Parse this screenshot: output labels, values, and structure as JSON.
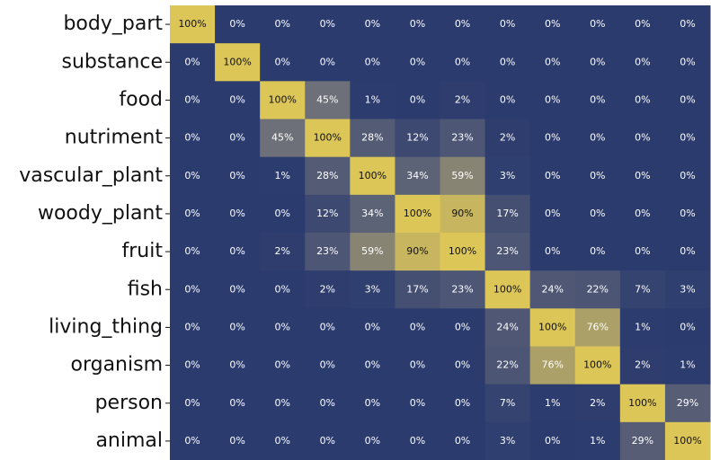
{
  "chart_data": {
    "type": "heatmap",
    "categories": [
      "body_part",
      "substance",
      "food",
      "nutriment",
      "vascular_plant",
      "woody_plant",
      "fruit",
      "fish",
      "living_thing",
      "organism",
      "person",
      "animal"
    ],
    "colormap": [
      "#2b3b6e",
      "#75767a",
      "#dcc658"
    ],
    "values": [
      [
        100,
        0,
        0,
        0,
        0,
        0,
        0,
        0,
        0,
        0,
        0,
        0
      ],
      [
        0,
        100,
        0,
        0,
        0,
        0,
        0,
        0,
        0,
        0,
        0,
        0
      ],
      [
        0,
        0,
        100,
        45,
        1,
        0,
        2,
        0,
        0,
        0,
        0,
        0
      ],
      [
        0,
        0,
        45,
        100,
        28,
        12,
        23,
        2,
        0,
        0,
        0,
        0
      ],
      [
        0,
        0,
        1,
        28,
        100,
        34,
        59,
        3,
        0,
        0,
        0,
        0
      ],
      [
        0,
        0,
        0,
        12,
        34,
        100,
        90,
        17,
        0,
        0,
        0,
        0
      ],
      [
        0,
        0,
        2,
        23,
        59,
        90,
        100,
        23,
        0,
        0,
        0,
        0
      ],
      [
        0,
        0,
        0,
        2,
        3,
        17,
        23,
        100,
        24,
        22,
        7,
        3
      ],
      [
        0,
        0,
        0,
        0,
        0,
        0,
        0,
        24,
        100,
        76,
        1,
        0
      ],
      [
        0,
        0,
        0,
        0,
        0,
        0,
        0,
        22,
        76,
        100,
        2,
        1
      ],
      [
        0,
        0,
        0,
        0,
        0,
        0,
        0,
        7,
        1,
        2,
        100,
        29
      ],
      [
        0,
        0,
        0,
        0,
        0,
        0,
        0,
        3,
        0,
        1,
        29,
        100
      ]
    ],
    "value_labels": [
      [
        "100%",
        "0%",
        "0%",
        "0%",
        "0%",
        "0%",
        "0%",
        "0%",
        "0%",
        "0%",
        "0%",
        "0%"
      ],
      [
        "0%",
        "100%",
        "0%",
        "0%",
        "0%",
        "0%",
        "0%",
        "0%",
        "0%",
        "0%",
        "0%",
        "0%"
      ],
      [
        "0%",
        "0%",
        "100%",
        "45%",
        "1%",
        "0%",
        "2%",
        "0%",
        "0%",
        "0%",
        "0%",
        "0%"
      ],
      [
        "0%",
        "0%",
        "45%",
        "100%",
        "28%",
        "12%",
        "23%",
        "2%",
        "0%",
        "0%",
        "0%",
        "0%"
      ],
      [
        "0%",
        "0%",
        "1%",
        "28%",
        "100%",
        "34%",
        "59%",
        "3%",
        "0%",
        "0%",
        "0%",
        "0%"
      ],
      [
        "0%",
        "0%",
        "0%",
        "12%",
        "34%",
        "100%",
        "90%",
        "17%",
        "0%",
        "0%",
        "0%",
        "0%"
      ],
      [
        "0%",
        "0%",
        "2%",
        "23%",
        "59%",
        "90%",
        "100%",
        "23%",
        "0%",
        "0%",
        "0%",
        "0%"
      ],
      [
        "0%",
        "0%",
        "0%",
        "2%",
        "3%",
        "17%",
        "23%",
        "100%",
        "24%",
        "22%",
        "7%",
        "3%"
      ],
      [
        "0%",
        "0%",
        "0%",
        "0%",
        "0%",
        "0%",
        "0%",
        "24%",
        "100%",
        "76%",
        "1%",
        "0%"
      ],
      [
        "0%",
        "0%",
        "0%",
        "0%",
        "0%",
        "0%",
        "0%",
        "22%",
        "76%",
        "100%",
        "2%",
        "1%"
      ],
      [
        "0%",
        "0%",
        "0%",
        "0%",
        "0%",
        "0%",
        "0%",
        "7%",
        "1%",
        "2%",
        "100%",
        "29%"
      ],
      [
        "0%",
        "0%",
        "0%",
        "0%",
        "0%",
        "0%",
        "0%",
        "3%",
        "0%",
        "1%",
        "29%",
        "100%"
      ]
    ]
  }
}
